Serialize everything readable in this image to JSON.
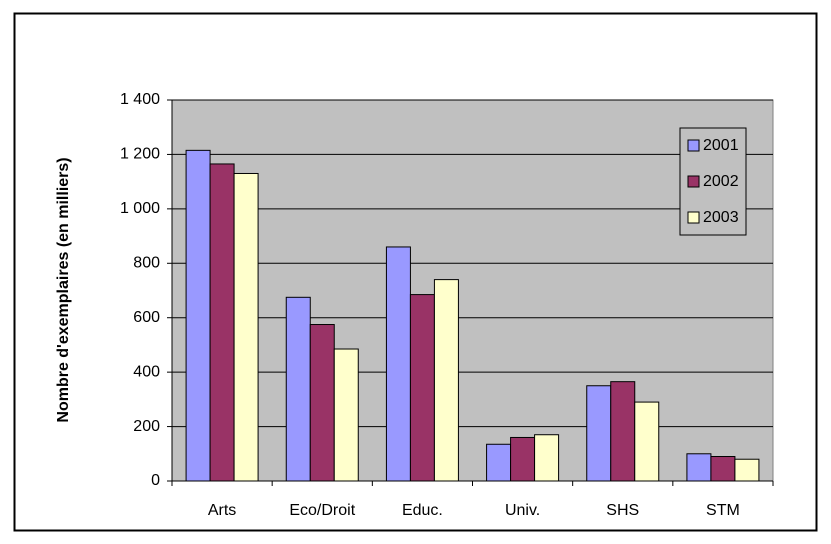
{
  "chart_data": {
    "type": "bar",
    "y_label": "Nombre d'exemplaires (en milliers)",
    "categories": [
      "Arts",
      "Eco/Droit",
      "Educ.",
      "Univ.",
      "SHS",
      "STM"
    ],
    "series": [
      {
        "name": "2001",
        "color": "#9999ff",
        "values": [
          1215,
          675,
          860,
          135,
          350,
          100
        ]
      },
      {
        "name": "2002",
        "color": "#993366",
        "values": [
          1165,
          575,
          685,
          160,
          365,
          90
        ]
      },
      {
        "name": "2003",
        "color": "#ffffcc",
        "values": [
          1130,
          485,
          740,
          170,
          290,
          80
        ]
      }
    ],
    "ylim": [
      0,
      1400
    ],
    "yticks": [
      0,
      200,
      400,
      600,
      800,
      {
        "value": 1000,
        "label": "1 000"
      },
      {
        "value": 1200,
        "label": "1 200"
      },
      {
        "value": 1400,
        "label": "1 400"
      }
    ],
    "grid": true,
    "legend": "top-right",
    "plot_background": "#c0c0c0"
  }
}
